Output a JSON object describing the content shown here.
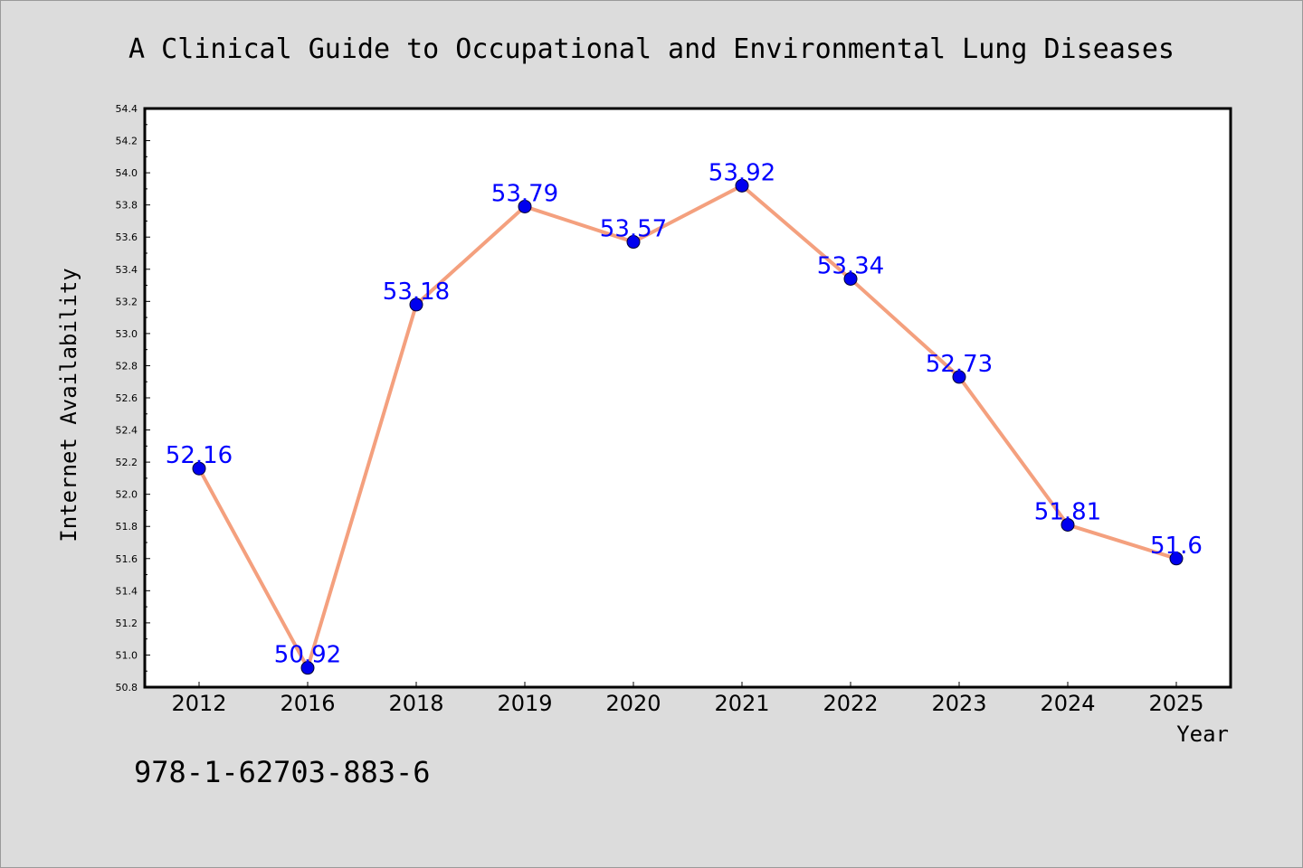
{
  "chart_data": {
    "type": "line",
    "title": "A Clinical Guide to Occupational and Environmental Lung Diseases",
    "xlabel": "Year",
    "ylabel": "Internet Availability",
    "categories": [
      "2012",
      "2016",
      "2018",
      "2019",
      "2020",
      "2021",
      "2022",
      "2023",
      "2024",
      "2025"
    ],
    "series": [
      {
        "values": [
          52.16,
          50.92,
          53.18,
          53.79,
          53.57,
          53.92,
          53.34,
          52.73,
          51.81,
          51.6
        ]
      }
    ],
    "data_labels": [
      "52.16",
      "50.92",
      "53.18",
      "53.79",
      "53.57",
      "53.92",
      "53.34",
      "52.73",
      "51.81",
      "51.6"
    ],
    "ylim": [
      50.8,
      54.4
    ],
    "yticks": [
      "50.8",
      "51.0",
      "51.2",
      "51.4",
      "51.6",
      "51.8",
      "52.0",
      "52.2",
      "52.4",
      "52.6",
      "52.8",
      "53.0",
      "53.2",
      "53.4",
      "53.6",
      "53.8",
      "54.0",
      "54.2",
      "54.4"
    ],
    "grid": false,
    "colors": {
      "line": "#f4a07e",
      "marker": "#0000ee",
      "data_label": "#0000ff",
      "background": "#dcdcdc",
      "plot_background": "#ffffff"
    }
  },
  "footer": {
    "isbn": "978-1-62703-883-6"
  }
}
